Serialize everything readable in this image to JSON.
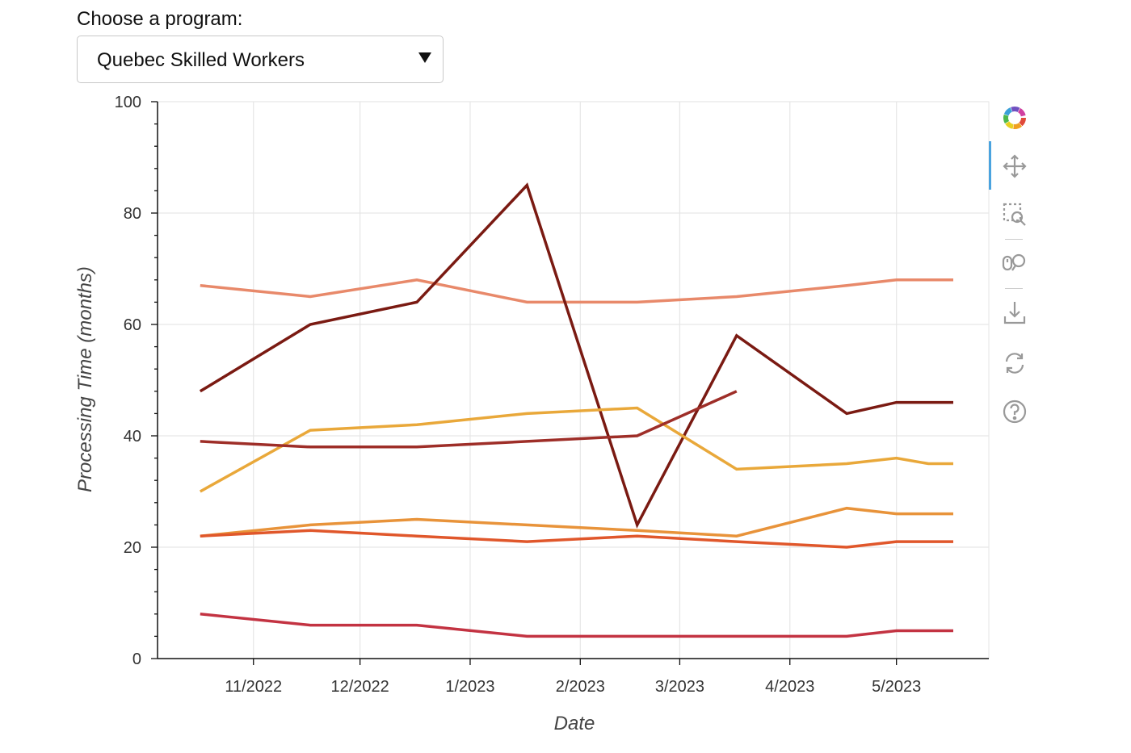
{
  "selector": {
    "label": "Choose a program:",
    "value": "Quebec Skilled Workers"
  },
  "toolbar": {
    "tools": [
      "bokeh-logo-icon",
      "pan-icon",
      "box-zoom-icon",
      "wheel-zoom-icon",
      "save-icon",
      "reset-icon",
      "help-icon"
    ],
    "active": "pan-icon"
  },
  "chart_data": {
    "type": "line",
    "title": "",
    "xlabel": "Date",
    "ylabel": "Processing Time (months)",
    "ylim": [
      0,
      100
    ],
    "xlim": [
      "2022-10-05",
      "2023-05-27"
    ],
    "yticks": [
      0,
      20,
      40,
      60,
      80,
      100
    ],
    "xticks": [
      {
        "date": "2022-11-01",
        "label": "11/2022"
      },
      {
        "date": "2022-12-01",
        "label": "12/2022"
      },
      {
        "date": "2023-01-01",
        "label": "1/2023"
      },
      {
        "date": "2023-02-01",
        "label": "2/2023"
      },
      {
        "date": "2023-03-01",
        "label": "3/2023"
      },
      {
        "date": "2023-04-01",
        "label": "4/2023"
      },
      {
        "date": "2023-05-01",
        "label": "5/2023"
      }
    ],
    "grid": true,
    "series": [
      {
        "color": "#e8896a",
        "points": [
          [
            "2022-10-17",
            67
          ],
          [
            "2022-11-17",
            65
          ],
          [
            "2022-12-17",
            68
          ],
          [
            "2023-01-17",
            64
          ],
          [
            "2023-02-17",
            64
          ],
          [
            "2023-03-17",
            65
          ],
          [
            "2023-04-17",
            67
          ],
          [
            "2023-05-01",
            68
          ],
          [
            "2023-05-17",
            68
          ]
        ]
      },
      {
        "color": "#7a1a12",
        "points": [
          [
            "2022-10-17",
            48
          ],
          [
            "2022-11-17",
            60
          ],
          [
            "2022-12-17",
            64
          ],
          [
            "2023-01-17",
            85
          ],
          [
            "2023-02-17",
            24
          ],
          [
            "2023-03-17",
            58
          ],
          [
            "2023-04-17",
            44
          ],
          [
            "2023-05-01",
            46
          ],
          [
            "2023-05-17",
            46
          ]
        ]
      },
      {
        "color": "#e9a83a",
        "points": [
          [
            "2022-10-17",
            30
          ],
          [
            "2022-11-17",
            41
          ],
          [
            "2022-12-17",
            42
          ],
          [
            "2023-01-17",
            44
          ],
          [
            "2023-02-17",
            45
          ],
          [
            "2023-03-17",
            34
          ],
          [
            "2023-04-17",
            35
          ],
          [
            "2023-05-01",
            36
          ],
          [
            "2023-05-10",
            35
          ],
          [
            "2023-05-17",
            35
          ]
        ]
      },
      {
        "color": "#9e2e28",
        "points": [
          [
            "2022-10-17",
            39
          ],
          [
            "2022-11-17",
            38
          ],
          [
            "2022-12-17",
            38
          ],
          [
            "2023-01-17",
            39
          ],
          [
            "2023-02-17",
            40
          ],
          [
            "2023-03-17",
            48
          ]
        ]
      },
      {
        "color": "#e8933a",
        "points": [
          [
            "2022-10-17",
            22
          ],
          [
            "2022-11-17",
            24
          ],
          [
            "2022-12-17",
            25
          ],
          [
            "2023-01-17",
            24
          ],
          [
            "2023-02-17",
            23
          ],
          [
            "2023-03-17",
            22
          ],
          [
            "2023-04-17",
            27
          ],
          [
            "2023-05-01",
            26
          ],
          [
            "2023-05-17",
            26
          ]
        ]
      },
      {
        "color": "#e0572b",
        "points": [
          [
            "2022-10-17",
            22
          ],
          [
            "2022-11-17",
            23
          ],
          [
            "2022-12-17",
            22
          ],
          [
            "2023-01-17",
            21
          ],
          [
            "2023-02-17",
            22
          ],
          [
            "2023-03-17",
            21
          ],
          [
            "2023-04-17",
            20
          ],
          [
            "2023-05-01",
            21
          ],
          [
            "2023-05-17",
            21
          ]
        ]
      },
      {
        "color": "#c33342",
        "points": [
          [
            "2022-10-17",
            8
          ],
          [
            "2022-11-17",
            6
          ],
          [
            "2022-12-17",
            6
          ],
          [
            "2023-01-17",
            4
          ],
          [
            "2023-02-17",
            4
          ],
          [
            "2023-03-17",
            4
          ],
          [
            "2023-04-17",
            4
          ],
          [
            "2023-05-01",
            5
          ],
          [
            "2023-05-17",
            5
          ]
        ]
      }
    ]
  }
}
